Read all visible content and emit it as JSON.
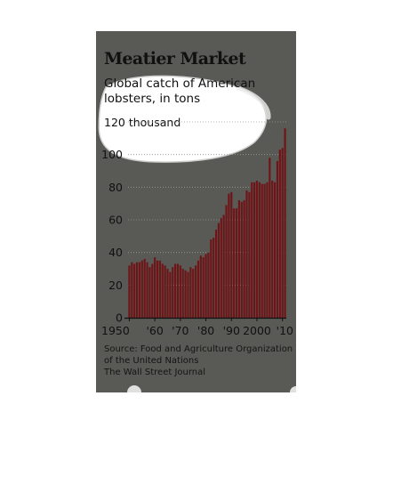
{
  "chart_data": {
    "type": "bar",
    "title": "Meatier Market",
    "subtitle": "Global catch of American lobsters, in tons",
    "ylabel": "",
    "xlabel": "",
    "unit_label": "120 thousand",
    "ylim": [
      0,
      120
    ],
    "y_ticks": [
      0,
      20,
      40,
      60,
      80,
      100
    ],
    "x_tick_labels": [
      {
        "year": 1950,
        "label": "1950"
      },
      {
        "year": 1960,
        "label": "'60"
      },
      {
        "year": 1970,
        "label": "'70"
      },
      {
        "year": 1980,
        "label": "'80"
      },
      {
        "year": 1990,
        "label": "'90"
      },
      {
        "year": 2000,
        "label": "2000"
      },
      {
        "year": 2010,
        "label": "'10"
      }
    ],
    "grid": true,
    "bar_color": "#6e1518",
    "series": [
      {
        "x": [
          1950,
          1951,
          1952,
          1953,
          1954,
          1955,
          1956,
          1957,
          1958,
          1959,
          1960,
          1961,
          1962,
          1963,
          1964,
          1965,
          1966,
          1967,
          1968,
          1969,
          1970,
          1971,
          1972,
          1973,
          1974,
          1975,
          1976,
          1977,
          1978,
          1979,
          1980,
          1981,
          1982,
          1983,
          1984,
          1985,
          1986,
          1987,
          1988,
          1989,
          1990,
          1991,
          1992,
          1993,
          1994,
          1995,
          1996,
          1997,
          1998,
          1999,
          2000,
          2001,
          2002,
          2003,
          2004,
          2005,
          2006,
          2007,
          2008,
          2009,
          2010,
          2011
        ],
        "values": [
          32,
          34,
          33,
          34,
          34,
          35,
          36,
          34,
          31,
          33,
          37,
          35,
          35,
          33,
          32,
          30,
          28,
          31,
          33,
          33,
          32,
          30,
          29,
          28,
          31,
          30,
          32,
          35,
          38,
          37,
          39,
          40,
          48,
          49,
          54,
          58,
          61,
          63,
          69,
          76,
          77,
          67,
          67,
          72,
          71,
          72,
          78,
          77,
          83,
          83,
          84,
          83,
          82,
          82,
          83,
          98,
          84,
          83,
          96,
          103,
          104,
          116
        ]
      }
    ],
    "source": {
      "line1": "Source: Food and Agriculture Organization",
      "line2": "of the United Nations",
      "line3": "The Wall Street Journal"
    },
    "colors": {
      "panel": "#595955",
      "highlight": "#ffffff",
      "grid": "#9a9a94",
      "axis": "#111111"
    }
  }
}
